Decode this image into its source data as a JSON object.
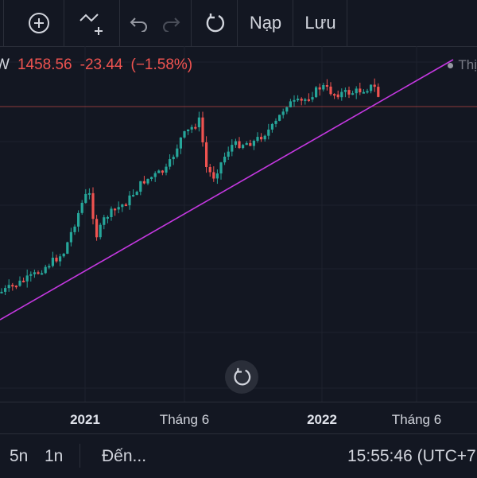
{
  "toolbar": {
    "load_label": "Nạp",
    "save_label": "Lưu"
  },
  "legend": {
    "symbol_tail": "W",
    "price": "1458.56",
    "change": "-23.44",
    "change_pct": "(−1.58%)"
  },
  "series_tag": "Thị",
  "chart_data": {
    "type": "candlestick",
    "xaxis_ticks": [
      "2021",
      "Tháng 6",
      "2022",
      "Tháng 6"
    ],
    "bold_ticks": [
      "2021",
      "2022"
    ],
    "last_close": 1458.56,
    "colors": {
      "up": "#26a69a",
      "down": "#ef5350",
      "trendline": "#c438e0",
      "price_line": "#ef5350"
    }
  },
  "bottom_bar": {
    "range_5y": "5n",
    "range_1y": "1n",
    "goto": "Đến...",
    "time": "15:55:46 (UTC+7"
  },
  "colors": {
    "background": "#131722",
    "text": "#d1d4dc",
    "grid": "#2a2e39"
  }
}
